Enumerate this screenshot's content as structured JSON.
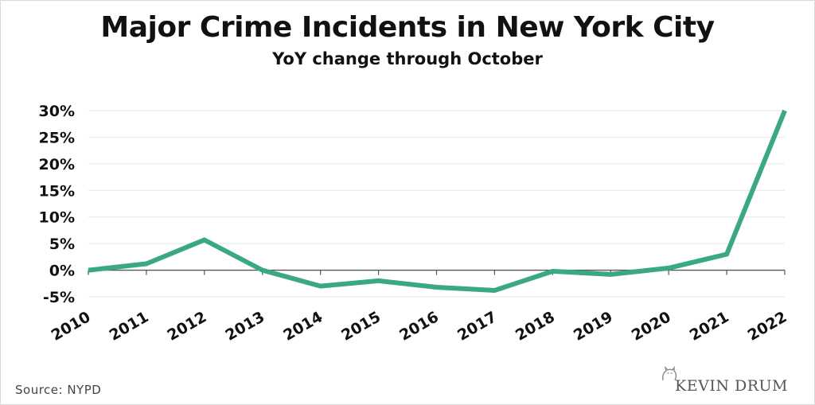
{
  "chart_data": {
    "type": "line",
    "title": "Major Crime Incidents in New York City",
    "subtitle": "YoY change through October",
    "xlabel": "",
    "ylabel": "",
    "x": [
      "2010",
      "2011",
      "2012",
      "2013",
      "2014",
      "2015",
      "2016",
      "2017",
      "2018",
      "2019",
      "2020",
      "2021",
      "2022"
    ],
    "series": [
      {
        "values": [
          0,
          1.2,
          5.7,
          0,
          -3.0,
          -2.0,
          -3.2,
          -3.8,
          -0.2,
          -0.8,
          0.4,
          3.0,
          30.0
        ]
      }
    ],
    "ylim": [
      -5,
      30
    ],
    "yticks": [
      -5,
      0,
      5,
      10,
      15,
      20,
      25,
      30
    ],
    "ytick_labels": [
      "-5%",
      "0%",
      "5%",
      "10%",
      "15%",
      "20%",
      "25%",
      "30%"
    ],
    "grid": true,
    "colors": {
      "line": "#3aa880",
      "grid": "#e6e6e6",
      "axis": "#555555"
    }
  },
  "footer": {
    "source": "Source:  NYPD",
    "logo": "KEVIN DRUM"
  }
}
